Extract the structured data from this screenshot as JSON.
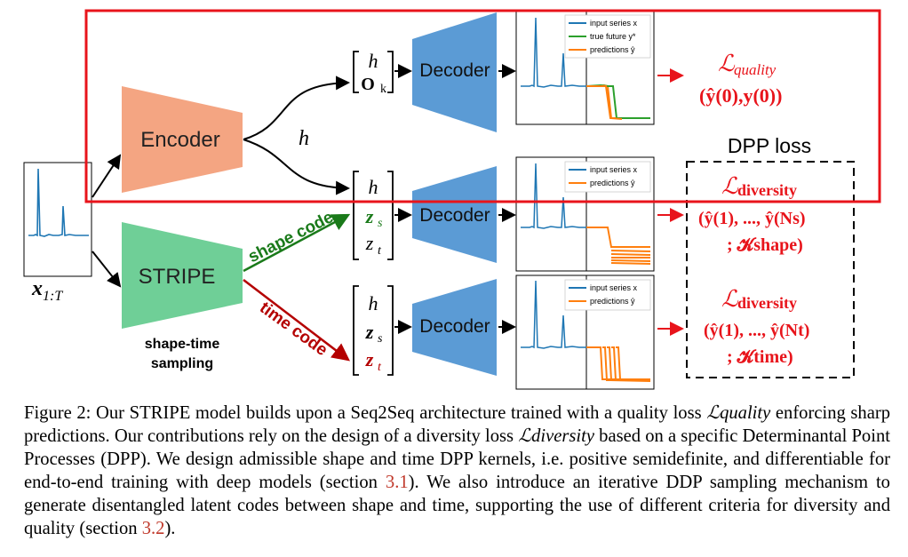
{
  "figure": {
    "input_label_main": "x",
    "input_label_sub": "1:T",
    "encoder_label": "Encoder",
    "stripe_label": "STRIPE",
    "shape_time_sampling_line1": "shape-time",
    "shape_time_sampling_line2": "sampling",
    "h_label": "h",
    "shape_code_label": "shape code",
    "time_code_label": "time code",
    "decoder_label": "Decoder",
    "vector_top": {
      "h": "h",
      "o": "O",
      "o_sub": "k"
    },
    "vector_mid": {
      "h": "h",
      "z1": "z",
      "z1_sub": "s",
      "z2": "z",
      "z2_sub": "t"
    },
    "vector_bot": {
      "h": "h",
      "z1": "z",
      "z1_sub": "s",
      "z2": "z",
      "z2_sub": "t"
    },
    "legend_top": [
      "input series x",
      "true future y*",
      "predictions ŷ"
    ],
    "legend_mid": [
      "input series x",
      "predictions ŷ"
    ],
    "legend_bot": [
      "input series x",
      "predictions ŷ"
    ],
    "loss_quality": {
      "symbol": "ℒ",
      "sub": "quality",
      "args": "(ŷ(0),y(0))"
    },
    "dpp_loss_label": "DPP loss",
    "loss_div_shape": {
      "symbol": "ℒ",
      "sub": "diversity",
      "args": "(ŷ(1), ..., ŷ(Ns)",
      "kernel": "; 𝓚shape)"
    },
    "loss_div_time": {
      "symbol": "ℒ",
      "sub": "diversity",
      "args": "(ŷ(1), ..., ŷ(Nt)",
      "kernel": "; 𝓚time)"
    },
    "colors": {
      "encoder": "#f4a582",
      "stripe": "#6fcf97",
      "decoder": "#5b9bd5",
      "input_series": "#1f77b4",
      "true_future": "#2ca02c",
      "predictions": "#ff7f0e",
      "shape_code": "#1a7a1a",
      "time_code": "#b40000",
      "loss": "#e8141b",
      "highlight_box": "#e8141b"
    }
  },
  "caption": {
    "prefix": "Figure 2: Our STRIPE model builds upon a Seq2Seq architecture trained with a quality loss ",
    "loss_quality": "ℒquality",
    "part2": " enforcing sharp predictions. Our contributions rely on the design of a diversity loss ",
    "loss_diversity": "ℒdiversity",
    "part3": " based on a specific Determinantal Point Processes (DPP). We design admissible shape and time DPP kernels, i.e. positive semidefinite, and differentiable for end-to-end training with deep models (section ",
    "ref1": "3.1",
    "part4": "). We also introduce an iterative DDP sampling mechanism to generate disentangled latent codes between shape and time, supporting the use of different criteria for diversity and quality (section ",
    "ref2": "3.2",
    "part5": ")."
  }
}
